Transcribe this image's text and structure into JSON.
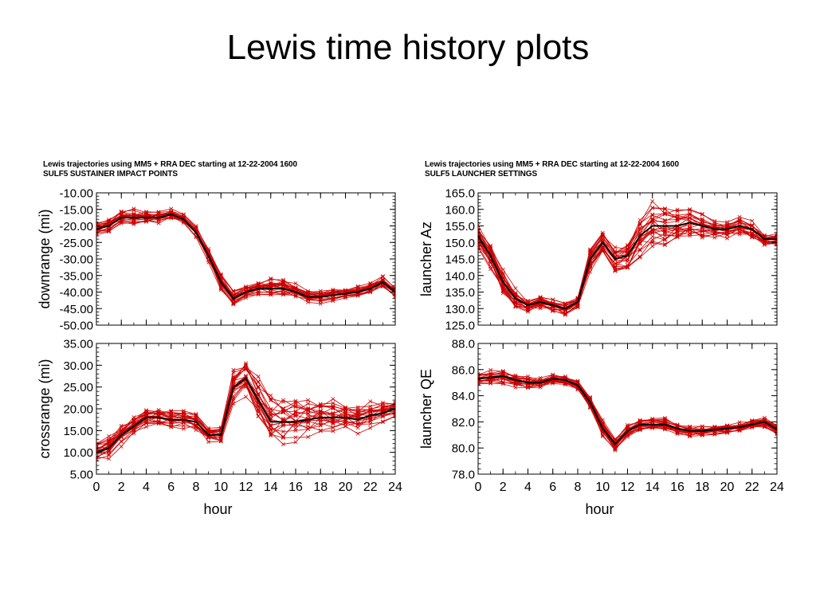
{
  "title": "Lewis time history plots",
  "colors": {
    "member": "#cc0000",
    "mean": "#000000",
    "axis": "#000000"
  },
  "left_header": {
    "line1": "Lewis trajectories using MM5 + RRA DEC starting at 12-22-2004 1600",
    "line2": "SULF5  SUSTAINER IMPACT POINTS"
  },
  "right_header": {
    "line1": "Lewis trajectories using MM5 + RRA DEC starting at 12-22-2004 1600",
    "line2": "SULF5 LAUNCHER SETTINGS"
  },
  "chart_data": [
    {
      "id": "downrange",
      "type": "line",
      "ylabel": "downrange (mi)",
      "xlabel": "",
      "xlim": [
        0,
        24
      ],
      "ylim": [
        -50,
        -10
      ],
      "yticks": [
        "-10.00",
        "-15.00",
        "-20.00",
        "-25.00",
        "-30.00",
        "-35.00",
        "-40.00",
        "-45.00",
        "-50.00"
      ],
      "ytick_values": [
        -10,
        -15,
        -20,
        -25,
        -30,
        -35,
        -40,
        -45,
        -50
      ],
      "xticks": [
        "0",
        "2",
        "4",
        "6",
        "8",
        "10",
        "12",
        "14",
        "16",
        "18",
        "20",
        "22",
        "24"
      ],
      "show_xticklabels": false,
      "x": [
        0,
        1,
        2,
        3,
        4,
        5,
        6,
        7,
        8,
        9,
        10,
        11,
        12,
        13,
        14,
        15,
        16,
        17,
        18,
        19,
        20,
        21,
        22,
        23,
        24
      ],
      "mean": [
        -21,
        -20,
        -17.5,
        -17.5,
        -17.5,
        -17.5,
        -16.5,
        -18,
        -22,
        -29,
        -37,
        -42,
        -40,
        -39,
        -39,
        -39,
        -40,
        -41.5,
        -41.5,
        -41,
        -40.5,
        -40,
        -39,
        -37,
        -40
      ],
      "spread": [
        2,
        2.5,
        3,
        2.5,
        2,
        2,
        1.5,
        1.5,
        2,
        2,
        3,
        2.5,
        2.5,
        2.5,
        3,
        3,
        2.5,
        2,
        2,
        2,
        2,
        2,
        2,
        2,
        2
      ],
      "member_count": 22
    },
    {
      "id": "launcher_az",
      "type": "line",
      "ylabel": "launcher Az",
      "xlabel": "",
      "xlim": [
        0,
        24
      ],
      "ylim": [
        125,
        165
      ],
      "yticks": [
        "165.0",
        "160.0",
        "155.0",
        "150.0",
        "145.0",
        "140.0",
        "135.0",
        "130.0",
        "125.0"
      ],
      "ytick_values": [
        165,
        160,
        155,
        150,
        145,
        140,
        135,
        130,
        125
      ],
      "xticks": [
        "0",
        "2",
        "4",
        "6",
        "8",
        "10",
        "12",
        "14",
        "16",
        "18",
        "20",
        "22",
        "24"
      ],
      "show_xticklabels": false,
      "x": [
        0,
        1,
        2,
        3,
        4,
        5,
        6,
        7,
        8,
        9,
        10,
        11,
        12,
        13,
        14,
        15,
        16,
        17,
        18,
        19,
        20,
        21,
        22,
        23,
        24
      ],
      "mean": [
        152,
        146,
        138,
        133,
        131,
        132,
        131,
        130,
        132,
        145,
        150,
        145,
        146,
        152,
        155,
        155,
        155,
        156,
        155,
        154,
        154,
        155,
        154,
        151,
        151
      ],
      "spread": [
        4,
        5,
        4,
        3,
        2,
        2,
        2,
        2,
        2,
        4,
        4,
        4,
        5,
        7,
        7,
        7,
        6,
        5,
        4,
        3,
        3,
        3,
        3,
        2,
        2
      ],
      "member_count": 22
    },
    {
      "id": "crossrange",
      "type": "line",
      "ylabel": "crossrange (mi)",
      "xlabel": "hour",
      "xlim": [
        0,
        24
      ],
      "ylim": [
        5,
        35
      ],
      "yticks": [
        "35.00",
        "30.00",
        "25.00",
        "20.00",
        "15.00",
        "10.00",
        "5.00"
      ],
      "ytick_values": [
        35,
        30,
        25,
        20,
        15,
        10,
        5
      ],
      "xticks": [
        "0",
        "2",
        "4",
        "6",
        "8",
        "10",
        "12",
        "14",
        "16",
        "18",
        "20",
        "22",
        "24"
      ],
      "show_xticklabels": true,
      "x": [
        0,
        1,
        2,
        3,
        4,
        5,
        6,
        7,
        8,
        9,
        10,
        11,
        12,
        13,
        14,
        15,
        16,
        17,
        18,
        19,
        20,
        21,
        22,
        23,
        24
      ],
      "mean": [
        10,
        11,
        14,
        16,
        18,
        18,
        17.5,
        17.5,
        17,
        14,
        14,
        25,
        27,
        22,
        17,
        17,
        17,
        17.5,
        18,
        18,
        18,
        17.5,
        18.5,
        19,
        20
      ],
      "spread": [
        2,
        2.5,
        2.5,
        2,
        2,
        2,
        2,
        2,
        2,
        1.5,
        2,
        4,
        4,
        5,
        6,
        6,
        5,
        5,
        4,
        4,
        3,
        3,
        3,
        2.5,
        2
      ],
      "member_count": 22
    },
    {
      "id": "launcher_qe",
      "type": "line",
      "ylabel": "launcher QE",
      "xlabel": "hour",
      "xlim": [
        0,
        24
      ],
      "ylim": [
        78,
        88
      ],
      "yticks": [
        "88.0",
        "86.0",
        "84.0",
        "82.0",
        "80.0",
        "78.0"
      ],
      "ytick_values": [
        88,
        86,
        84,
        82,
        80,
        78
      ],
      "xticks": [
        "0",
        "2",
        "4",
        "6",
        "8",
        "10",
        "12",
        "14",
        "16",
        "18",
        "20",
        "22",
        "24"
      ],
      "show_xticklabels": true,
      "x": [
        0,
        1,
        2,
        3,
        4,
        5,
        6,
        7,
        8,
        9,
        10,
        11,
        12,
        13,
        14,
        15,
        16,
        17,
        18,
        19,
        20,
        21,
        22,
        23,
        24
      ],
      "mean": [
        85.3,
        85.4,
        85.5,
        85.2,
        85.0,
        85.0,
        85.3,
        85.2,
        84.8,
        83.5,
        81.5,
        80.3,
        81.3,
        81.8,
        81.8,
        81.8,
        81.5,
        81.3,
        81.3,
        81.4,
        81.5,
        81.6,
        81.8,
        82.0,
        81.4
      ],
      "spread": [
        0.5,
        0.6,
        0.7,
        0.6,
        0.5,
        0.4,
        0.4,
        0.4,
        0.4,
        0.6,
        0.7,
        0.6,
        0.5,
        0.5,
        0.5,
        0.5,
        0.5,
        0.5,
        0.4,
        0.4,
        0.4,
        0.4,
        0.4,
        0.4,
        0.5
      ],
      "member_count": 22
    }
  ]
}
